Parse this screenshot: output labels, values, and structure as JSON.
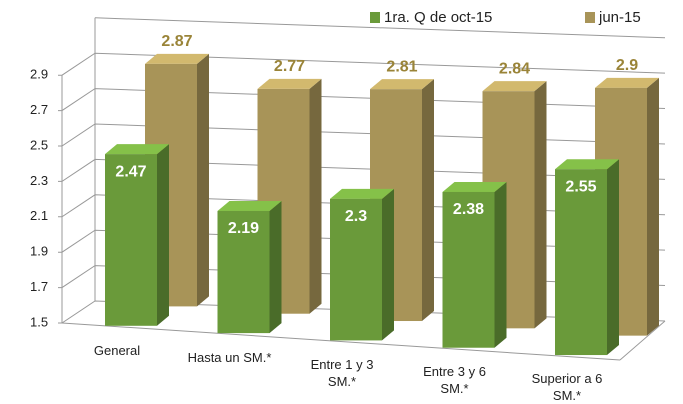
{
  "chart_data": {
    "type": "bar3d",
    "categories": [
      "General",
      "Hasta un SM.*",
      "Entre 1 y 3 SM.*",
      "Entre 3 y 6 SM.*",
      "Superior a 6 SM.*"
    ],
    "series": [
      {
        "name": "1ra. Q de oct-15",
        "color": "#6a9a3a",
        "values": [
          2.47,
          2.19,
          2.3,
          2.38,
          2.55
        ]
      },
      {
        "name": "jun-15",
        "color": "#a89458",
        "values": [
          2.87,
          2.77,
          2.81,
          2.84,
          2.9
        ]
      }
    ],
    "ylim": [
      1.5,
      3.1
    ],
    "yticks": [
      1.5,
      1.7,
      1.9,
      2.1,
      2.3,
      2.5,
      2.7,
      2.9
    ],
    "grid": true,
    "legend": "top"
  }
}
